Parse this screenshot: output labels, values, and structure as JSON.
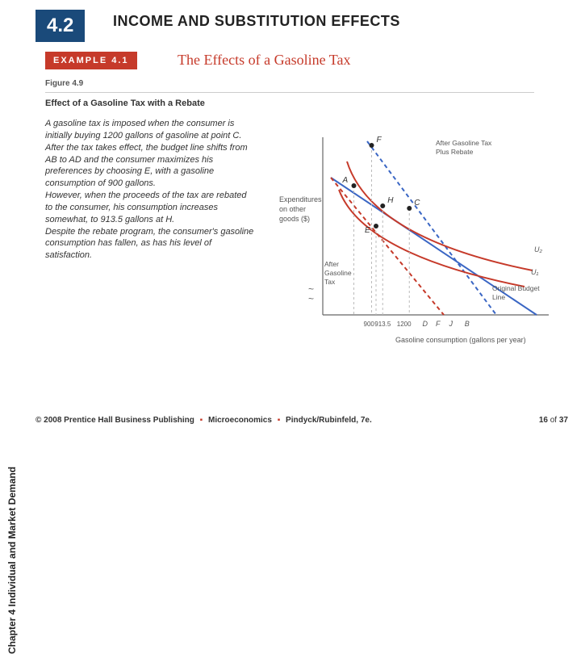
{
  "section": {
    "number": "4.2",
    "title": "INCOME AND SUBSTITUTION EFFECTS"
  },
  "example": {
    "badge": "EXAMPLE 4.1",
    "title": "The Effects of a Gasoline Tax"
  },
  "figure": {
    "label": "Figure 4.9",
    "subheading": "Effect of a Gasoline Tax with a Rebate"
  },
  "body": {
    "p1": "A gasoline tax is imposed when the consumer is initially buying 1200 gallons of gasoline at point C.",
    "p2": "After the tax takes effect, the budget line shifts from AB to AD and the consumer maximizes his preferences by choosing E, with a gasoline consumption of 900 gallons.",
    "p3": "However, when the proceeds of the tax are rebated to the consumer, his consumption increases somewhat, to 913.5 gallons at H.",
    "p4": "Despite the rebate program, the consumer's gasoline consumption has fallen, as has his level of satisfaction."
  },
  "sidebar": "Chapter 4  Individual and Market Demand",
  "chart": {
    "y_label": "Expenditures on other goods ($)",
    "x_label": "Gasoline consumption (gallons per year)",
    "x_ticks": [
      "900",
      "913.5",
      "1200"
    ],
    "x_tick_positions": [
      110,
      135,
      185
    ],
    "x_markers": [
      "D",
      "F",
      "J",
      "B"
    ],
    "x_marker_positions": [
      230,
      260,
      290,
      325
    ],
    "points": {
      "F": {
        "x": 110,
        "y": 20,
        "label": "F"
      },
      "A": {
        "x": 70,
        "y": 70,
        "label": "A"
      },
      "H": {
        "x": 135,
        "y": 95,
        "label": "H"
      },
      "E": {
        "x": 120,
        "y": 120,
        "label": "E"
      },
      "C": {
        "x": 195,
        "y": 98,
        "label": "C"
      }
    },
    "annotations": {
      "after_tax_rebate": "After Gasoline Tax Plus Rebate",
      "after_tax": "After Gasoline Tax",
      "original_budget": "Original Budget Line",
      "u1": "U₁",
      "u2": "U₂"
    },
    "colors": {
      "axis": "#666666",
      "orig_budget": "#3a66c4",
      "after_tax": "#c63a2a",
      "after_rebate": "#3a66c4",
      "indiff": "#c63a2a",
      "dash_guide": "#bbbbbb",
      "point": "#222222"
    },
    "styles": {
      "line_width": 2,
      "dash": "5,4",
      "font_size_labels": 9,
      "font_size_points": 10
    }
  },
  "footer": {
    "copyright": "© 2008 Prentice Hall Business Publishing",
    "book": "Microeconomics",
    "authors": "Pindyck/Rubinfeld, 7e."
  },
  "page": {
    "current": "16",
    "total": "37"
  }
}
